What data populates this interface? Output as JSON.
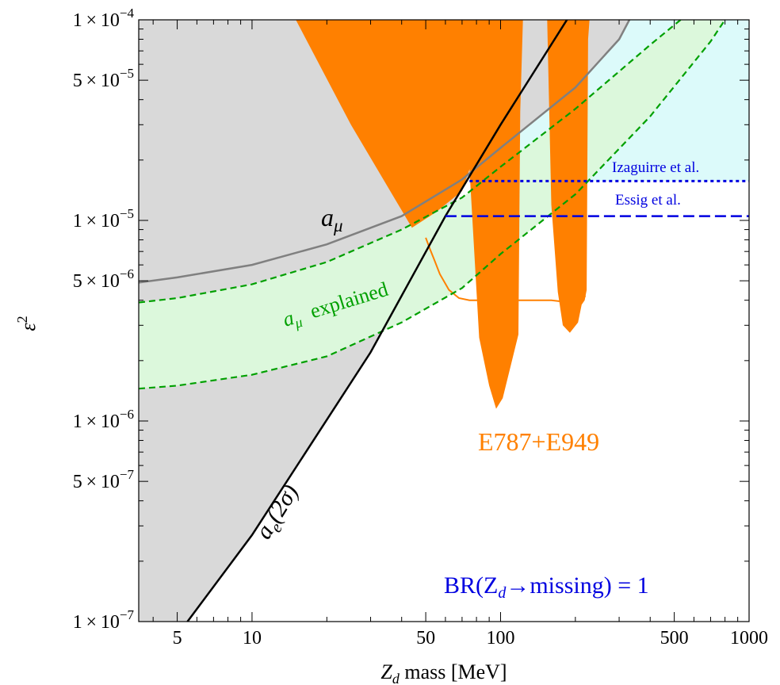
{
  "chart_data": {
    "type": "line",
    "title": "",
    "xlabel": "Z_d mass [MeV]",
    "xlabel_main": "Z",
    "xlabel_sub": "d",
    "xlabel_rest": " mass  [MeV]",
    "ylabel": "ε²",
    "ylabel_base": "ε",
    "ylabel_sup": "2",
    "xscale": "log",
    "yscale": "log",
    "xlim": [
      3.5,
      1000
    ],
    "ylim": [
      1e-07,
      0.0001
    ],
    "xticks": [
      {
        "value": 5,
        "label": "5"
      },
      {
        "value": 10,
        "label": "10"
      },
      {
        "value": 50,
        "label": "50"
      },
      {
        "value": 100,
        "label": "100"
      },
      {
        "value": 500,
        "label": "500"
      },
      {
        "value": 1000,
        "label": "1000"
      }
    ],
    "yticks": [
      {
        "value": 0.0001,
        "mant": "1",
        "exp": "−4"
      },
      {
        "value": 5e-05,
        "mant": "5",
        "exp": "−5"
      },
      {
        "value": 1e-05,
        "mant": "1",
        "exp": "−5"
      },
      {
        "value": 5e-06,
        "mant": "5",
        "exp": "−6"
      },
      {
        "value": 1e-06,
        "mant": "1",
        "exp": "−6"
      },
      {
        "value": 5e-07,
        "mant": "5",
        "exp": "−7"
      },
      {
        "value": 1e-07,
        "mant": "1",
        "exp": "−7"
      }
    ],
    "colors": {
      "excluded_gray": "#d9d9d9",
      "e787_orange": "#ff8000",
      "amu_band_fill": "#dcf8dc",
      "amu_band_line": "#00a000",
      "future_fill": "#dcfafa",
      "amu_line": "#808080",
      "ae_line": "#000000",
      "blue": "#0000e0"
    },
    "series": [
      {
        "key": "ae",
        "points": [
          [
            5.5,
            1e-07
          ],
          [
            10,
            2.7e-07
          ],
          [
            30,
            2.2e-06
          ],
          [
            60,
            1.05e-05
          ],
          [
            100,
            3e-05
          ],
          [
            185,
            0.0001
          ]
        ]
      },
      {
        "key": "amu",
        "points": [
          [
            3.5,
            4.9e-06
          ],
          [
            5,
            5.2e-06
          ],
          [
            10,
            6e-06
          ],
          [
            20,
            7.6e-06
          ],
          [
            40,
            1.05e-05
          ],
          [
            70,
            1.6e-05
          ],
          [
            100,
            2.3e-05
          ],
          [
            200,
            4.6e-05
          ],
          [
            300,
            8e-05
          ],
          [
            330,
            0.0001
          ]
        ]
      },
      {
        "key": "amu_band_upper",
        "points": [
          [
            3.5,
            3.9e-06
          ],
          [
            5,
            4.1e-06
          ],
          [
            10,
            4.8e-06
          ],
          [
            20,
            6.2e-06
          ],
          [
            40,
            9e-06
          ],
          [
            70,
            1.3e-05
          ],
          [
            100,
            1.85e-05
          ],
          [
            200,
            3.6e-05
          ],
          [
            400,
            7.5e-05
          ],
          [
            530,
            0.0001
          ]
        ]
      },
      {
        "key": "amu_band_lower",
        "points": [
          [
            3.5,
            1.45e-06
          ],
          [
            5,
            1.5e-06
          ],
          [
            10,
            1.7e-06
          ],
          [
            20,
            2.1e-06
          ],
          [
            40,
            3.1e-06
          ],
          [
            70,
            4.6e-06
          ],
          [
            100,
            6.8e-06
          ],
          [
            200,
            1.35e-05
          ],
          [
            400,
            3.3e-05
          ],
          [
            700,
            7.8e-05
          ],
          [
            800,
            0.0001
          ]
        ]
      },
      {
        "key": "izaguirre",
        "points": [
          [
            75,
            1.57e-05
          ],
          [
            1000,
            1.57e-05
          ]
        ]
      },
      {
        "key": "essig",
        "points": [
          [
            60,
            1.05e-05
          ],
          [
            1000,
            1.05e-05
          ]
        ]
      }
    ],
    "e787_regions": [
      {
        "points": [
          [
            15,
            0.0001
          ],
          [
            25,
            3e-05
          ],
          [
            38,
            1.25e-05
          ],
          [
            44,
            9.2e-06
          ],
          [
            55,
            1.1e-05
          ],
          [
            70,
            1.4e-05
          ],
          [
            75,
            1.8e-05
          ],
          [
            82,
            2.6e-06
          ],
          [
            90,
            1.5e-06
          ],
          [
            96,
            1.15e-06
          ],
          [
            102,
            1.3e-06
          ],
          [
            110,
            1.9e-06
          ],
          [
            118,
            2.7e-06
          ],
          [
            120,
            3.5e-05
          ],
          [
            123,
            0.0001
          ]
        ]
      },
      {
        "points": [
          [
            154,
            0.0001
          ],
          [
            160,
            1.2e-05
          ],
          [
            170,
            4.4e-06
          ],
          [
            178,
            3e-06
          ],
          [
            190,
            2.75e-06
          ],
          [
            205,
            3.1e-06
          ],
          [
            212,
            3.8e-06
          ],
          [
            218,
            4e-06
          ],
          [
            222,
            4.5e-06
          ],
          [
            225,
            8e-05
          ],
          [
            228,
            0.0001
          ]
        ]
      }
    ],
    "e787_boundary": [
      [
        50,
        8.2e-06
      ],
      [
        52,
        7.2e-06
      ],
      [
        54,
        6.4e-06
      ],
      [
        57,
        5.4e-06
      ],
      [
        62,
        4.5e-06
      ],
      [
        68,
        4.1e-06
      ],
      [
        75,
        4e-06
      ],
      [
        120,
        4e-06
      ],
      [
        160,
        4e-06
      ],
      [
        190,
        3.9e-06
      ],
      [
        220,
        4.2e-06
      ]
    ],
    "labels": {
      "amu": {
        "base": "a",
        "sub": "μ"
      },
      "amu_band": {
        "base": "a",
        "sub": "μ",
        "rest": "explained"
      },
      "ae": {
        "base": "a",
        "sub": "e",
        "rest": "(2σ)"
      },
      "e787": "E787+E949",
      "izaguirre": "Izaguirre et al.",
      "essig": "Essig et al.",
      "br_prefix": "BR(Z",
      "br_sub": "d",
      "br_rest": "→missing) = 1"
    }
  }
}
